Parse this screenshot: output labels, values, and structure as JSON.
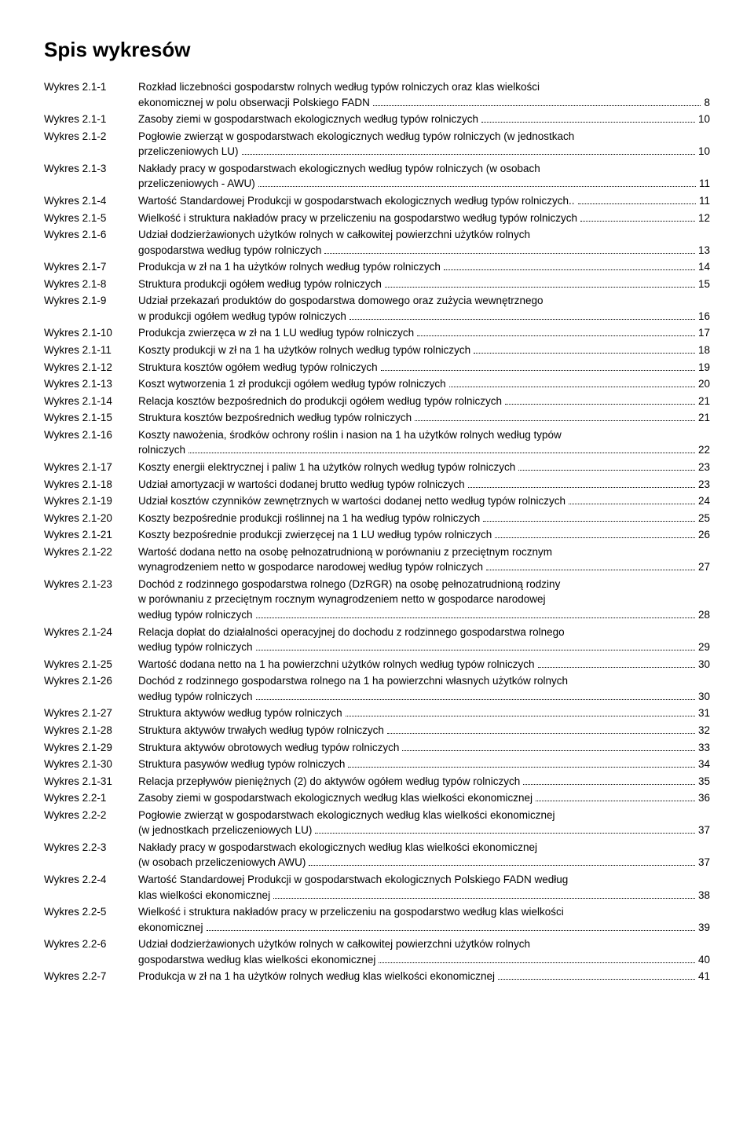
{
  "title": "Spis wykresów",
  "entries": [
    {
      "label": "Wykres 2.1-1",
      "lines": [
        "Rozkład liczebności gospodarstw rolnych według typów rolniczych oraz klas wielkości",
        "ekonomicznej w polu obserwacji Polskiego FADN"
      ],
      "page": "8"
    },
    {
      "label": "Wykres 2.1-1",
      "lines": [
        "Zasoby ziemi w gospodarstwach ekologicznych według typów rolniczych"
      ],
      "page": "10"
    },
    {
      "label": "Wykres 2.1-2",
      "lines": [
        "Pogłowie zwierząt w gospodarstwach ekologicznych według typów rolniczych (w jednostkach",
        "przeliczeniowych LU)"
      ],
      "page": "10"
    },
    {
      "label": "Wykres 2.1-3",
      "lines": [
        "Nakłady pracy w gospodarstwach ekologicznych według typów rolniczych (w osobach",
        "przeliczeniowych - AWU)"
      ],
      "page": "11"
    },
    {
      "label": "Wykres 2.1-4",
      "lines": [
        "Wartość Standardowej Produkcji w gospodarstwach ekologicznych według typów rolniczych.."
      ],
      "page": "11"
    },
    {
      "label": "Wykres 2.1-5",
      "lines": [
        "Wielkość i struktura nakładów pracy w przeliczeniu na gospodarstwo według typów rolniczych"
      ],
      "page": "12"
    },
    {
      "label": "Wykres 2.1-6",
      "lines": [
        "Udział dodzierżawionych użytków rolnych w całkowitej powierzchni użytków rolnych",
        "gospodarstwa według typów rolniczych"
      ],
      "page": "13"
    },
    {
      "label": "Wykres 2.1-7",
      "lines": [
        "Produkcja w zł na 1 ha użytków rolnych według typów rolniczych"
      ],
      "page": "14"
    },
    {
      "label": "Wykres 2.1-8",
      "lines": [
        "Struktura produkcji ogółem według typów rolniczych"
      ],
      "page": "15"
    },
    {
      "label": "Wykres 2.1-9",
      "lines": [
        "Udział przekazań produktów do gospodarstwa domowego oraz zużycia wewnętrznego",
        "w produkcji ogółem według typów rolniczych"
      ],
      "page": "16"
    },
    {
      "label": "Wykres 2.1-10",
      "lines": [
        "Produkcja zwierzęca w zł na 1 LU według typów rolniczych"
      ],
      "page": "17"
    },
    {
      "label": "Wykres 2.1-11",
      "lines": [
        "Koszty produkcji w zł na 1 ha użytków rolnych według typów rolniczych"
      ],
      "page": "18"
    },
    {
      "label": "Wykres 2.1-12",
      "lines": [
        "Struktura kosztów ogółem według typów rolniczych"
      ],
      "page": "19"
    },
    {
      "label": "Wykres 2.1-13",
      "lines": [
        "Koszt wytworzenia 1 zł produkcji ogółem według typów rolniczych"
      ],
      "page": "20"
    },
    {
      "label": "Wykres 2.1-14",
      "lines": [
        "Relacja kosztów bezpośrednich do produkcji ogółem według typów rolniczych"
      ],
      "page": "21"
    },
    {
      "label": "Wykres 2.1-15",
      "lines": [
        "Struktura kosztów bezpośrednich według typów rolniczych"
      ],
      "page": "21"
    },
    {
      "label": "Wykres 2.1-16",
      "lines": [
        "Koszty nawożenia, środków ochrony roślin i nasion na 1 ha użytków rolnych według typów",
        "rolniczych"
      ],
      "page": "22"
    },
    {
      "label": "Wykres 2.1-17",
      "lines": [
        "Koszty energii elektrycznej i paliw 1 ha użytków rolnych według typów rolniczych"
      ],
      "page": "23"
    },
    {
      "label": "Wykres 2.1-18",
      "lines": [
        "Udział amortyzacji w wartości dodanej brutto według typów rolniczych"
      ],
      "page": "23"
    },
    {
      "label": "Wykres 2.1-19",
      "lines": [
        "Udział kosztów czynników zewnętrznych w wartości dodanej netto według typów rolniczych"
      ],
      "page": "24"
    },
    {
      "label": "Wykres 2.1-20",
      "lines": [
        "Koszty bezpośrednie produkcji roślinnej na 1 ha według typów rolniczych"
      ],
      "page": "25"
    },
    {
      "label": "Wykres 2.1-21",
      "lines": [
        "Koszty bezpośrednie produkcji zwierzęcej na 1 LU według typów rolniczych"
      ],
      "page": "26"
    },
    {
      "label": "Wykres 2.1-22",
      "lines": [
        "Wartość dodana netto na osobę pełnozatrudnioną w porównaniu z przeciętnym rocznym",
        "wynagrodzeniem netto w gospodarce narodowej według typów rolniczych"
      ],
      "page": "27"
    },
    {
      "label": "Wykres 2.1-23",
      "lines": [
        "Dochód z rodzinnego gospodarstwa rolnego (DzRGR) na osobę pełnozatrudnioną rodziny",
        "w porównaniu z  przeciętnym rocznym wynagrodzeniem netto w gospodarce narodowej",
        "według typów rolniczych"
      ],
      "page": "28"
    },
    {
      "label": "Wykres 2.1-24",
      "lines": [
        "Relacja dopłat do działalności operacyjnej do dochodu z rodzinnego gospodarstwa rolnego",
        "według typów rolniczych"
      ],
      "page": "29"
    },
    {
      "label": "Wykres 2.1-25",
      "lines": [
        "Wartość dodana netto na 1 ha powierzchni użytków rolnych według typów rolniczych"
      ],
      "page": "30"
    },
    {
      "label": "Wykres 2.1-26",
      "lines": [
        "Dochód z rodzinnego gospodarstwa rolnego na 1 ha powierzchni własnych użytków rolnych",
        "według typów rolniczych"
      ],
      "page": "30"
    },
    {
      "label": "Wykres 2.1-27",
      "lines": [
        "Struktura aktywów według typów rolniczych"
      ],
      "page": "31"
    },
    {
      "label": "Wykres 2.1-28",
      "lines": [
        "Struktura aktywów trwałych według typów rolniczych"
      ],
      "page": "32"
    },
    {
      "label": "Wykres 2.1-29",
      "lines": [
        "Struktura aktywów obrotowych według typów rolniczych"
      ],
      "page": "33"
    },
    {
      "label": "Wykres 2.1-30",
      "lines": [
        "Struktura pasywów według typów rolniczych"
      ],
      "page": "34"
    },
    {
      "label": "Wykres 2.1-31",
      "lines": [
        "Relacja przepływów pieniężnych (2) do aktywów ogółem według typów rolniczych"
      ],
      "page": "35"
    },
    {
      "label": "Wykres 2.2-1",
      "lines": [
        "Zasoby ziemi w gospodarstwach ekologicznych według klas wielkości ekonomicznej"
      ],
      "page": "36"
    },
    {
      "label": "Wykres 2.2-2",
      "lines": [
        "Pogłowie zwierząt w gospodarstwach ekologicznych według klas wielkości ekonomicznej",
        "(w jednostkach przeliczeniowych  LU)"
      ],
      "page": "37"
    },
    {
      "label": "Wykres 2.2-3",
      "lines": [
        "Nakłady pracy w gospodarstwach ekologicznych według klas wielkości ekonomicznej",
        "(w osobach przeliczeniowych AWU)"
      ],
      "page": "37"
    },
    {
      "label": "Wykres 2.2-4",
      "lines": [
        "Wartość Standardowej Produkcji w gospodarstwach ekologicznych Polskiego FADN według",
        "klas wielkości ekonomicznej"
      ],
      "page": "38"
    },
    {
      "label": "Wykres 2.2-5",
      "lines": [
        "Wielkość i struktura nakładów pracy w przeliczeniu na gospodarstwo według klas wielkości",
        "ekonomicznej"
      ],
      "page": "39"
    },
    {
      "label": "Wykres 2.2-6",
      "lines": [
        "Udział dodzierżawionych użytków rolnych w całkowitej powierzchni użytków rolnych",
        "gospodarstwa według klas wielkości ekonomicznej"
      ],
      "page": "40"
    },
    {
      "label": "Wykres 2.2-7",
      "lines": [
        "Produkcja w zł na 1 ha użytków rolnych według klas wielkości ekonomicznej"
      ],
      "page": "41"
    }
  ]
}
